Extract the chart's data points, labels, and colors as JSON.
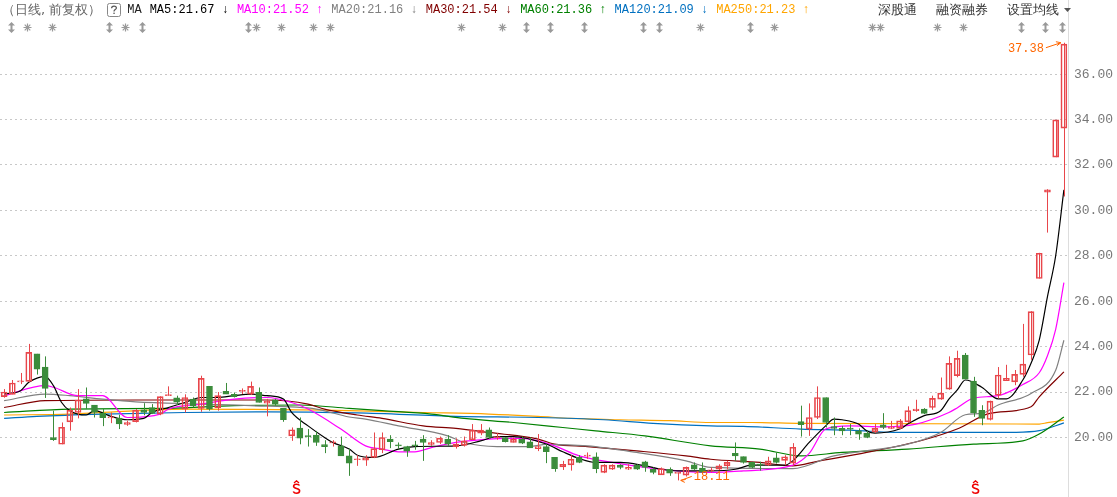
{
  "chart_data": {
    "type": "candlestick",
    "subtitle": "（日线, 前复权）",
    "legend_title": "MA",
    "legend": "top left",
    "grid": "y",
    "categories": [
      null,
      null,
      null,
      null,
      null,
      null,
      null,
      null,
      null,
      null,
      null,
      null,
      null,
      null,
      null,
      null,
      null,
      null,
      null,
      null,
      null,
      null,
      null,
      null,
      null,
      null,
      null,
      null,
      null,
      null,
      null,
      null,
      null,
      null,
      null,
      null,
      null,
      null,
      null,
      null,
      null,
      null,
      null,
      null,
      null,
      null,
      null,
      null,
      null,
      null,
      null,
      null,
      null,
      null,
      null,
      null,
      null,
      null,
      null,
      null,
      null,
      null,
      null,
      null,
      null,
      null,
      null,
      null,
      null,
      null,
      null,
      null,
      null,
      null,
      null,
      null,
      null,
      null,
      null,
      null,
      null,
      null,
      null,
      null,
      null,
      null,
      null,
      null,
      null,
      null,
      null,
      null,
      null,
      null,
      null,
      null,
      null,
      null,
      null,
      null,
      null,
      null,
      null,
      null,
      null,
      null,
      null,
      null,
      null,
      null,
      null,
      null,
      null,
      null,
      null,
      null,
      null,
      null,
      null,
      null,
      null,
      null,
      null,
      null,
      null,
      null,
      null,
      null,
      null,
      null
    ],
    "ohlc": [
      [
        21.8,
        22.13,
        21.75,
        22.0
      ],
      [
        21.9,
        22.53,
        21.9,
        22.4
      ],
      [
        22.45,
        22.84,
        22.35,
        22.48
      ],
      [
        22.47,
        24.12,
        22.43,
        23.75
      ],
      [
        23.68,
        23.68,
        22.77,
        23.01
      ],
      [
        23.1,
        23.57,
        21.74,
        22.16
      ],
      [
        20.0,
        21.18,
        19.85,
        19.9
      ],
      [
        19.7,
        20.66,
        19.7,
        20.45
      ],
      [
        20.69,
        21.32,
        20.3,
        21.2
      ],
      [
        21.1,
        22.13,
        20.84,
        21.65
      ],
      [
        21.7,
        22.2,
        21.25,
        21.5
      ],
      [
        21.43,
        21.43,
        20.88,
        21.1
      ],
      [
        21.07,
        21.25,
        20.5,
        20.87
      ],
      [
        20.86,
        21.1,
        20.63,
        20.9
      ],
      [
        20.85,
        21.0,
        20.37,
        20.6
      ],
      [
        20.57,
        20.74,
        20.51,
        20.66
      ],
      [
        20.7,
        21.25,
        20.66,
        21.2
      ],
      [
        21.22,
        21.51,
        20.98,
        21.1
      ],
      [
        21.32,
        21.47,
        21.03,
        21.06
      ],
      [
        21.03,
        21.81,
        20.98,
        21.8
      ],
      [
        21.84,
        22.25,
        21.84,
        21.87
      ],
      [
        21.75,
        21.84,
        21.43,
        21.55
      ],
      [
        21.25,
        21.9,
        21.1,
        21.76
      ],
      [
        21.69,
        21.76,
        21.32,
        21.4
      ],
      [
        21.28,
        22.72,
        21.13,
        22.6
      ],
      [
        22.25,
        22.25,
        21.18,
        21.25
      ],
      [
        21.31,
        22.0,
        21.18,
        21.84
      ],
      [
        22.03,
        22.4,
        21.91,
        21.91
      ],
      [
        21.9,
        21.98,
        21.76,
        21.8
      ],
      [
        22.03,
        22.16,
        21.91,
        22.05
      ],
      [
        21.91,
        22.46,
        21.87,
        22.25
      ],
      [
        21.99,
        22.2,
        21.54,
        21.54
      ],
      [
        21.51,
        21.7,
        20.93,
        21.6
      ],
      [
        21.66,
        21.7,
        21.4,
        21.47
      ],
      [
        21.28,
        21.28,
        20.69,
        20.78
      ],
      [
        20.07,
        20.44,
        19.85,
        20.34
      ],
      [
        20.41,
        20.88,
        19.7,
        19.97
      ],
      [
        20.06,
        20.37,
        19.6,
        20.04
      ],
      [
        20.1,
        20.29,
        19.63,
        19.78
      ],
      [
        19.69,
        19.88,
        19.31,
        19.6
      ],
      [
        19.76,
        19.88,
        19.6,
        19.8
      ],
      [
        19.63,
        20.04,
        19.19,
        19.19
      ],
      [
        19.19,
        19.51,
        18.31,
        18.87
      ],
      [
        19.02,
        19.22,
        18.75,
        19.04
      ],
      [
        19.0,
        19.22,
        18.75,
        19.1
      ],
      [
        19.12,
        20.22,
        19.09,
        19.51
      ],
      [
        19.46,
        20.22,
        19.31,
        20.0
      ],
      [
        19.93,
        20.1,
        19.53,
        19.81
      ],
      [
        19.65,
        19.78,
        19.49,
        19.63
      ],
      [
        19.6,
        19.63,
        19.15,
        19.4
      ],
      [
        19.65,
        19.85,
        19.46,
        19.63
      ],
      [
        19.93,
        20.1,
        18.97,
        19.78
      ],
      [
        19.69,
        19.88,
        19.63,
        19.78
      ],
      [
        19.78,
        20.04,
        19.71,
        19.97
      ],
      [
        19.93,
        20.1,
        19.63,
        19.71
      ],
      [
        19.6,
        19.96,
        19.51,
        19.71
      ],
      [
        19.65,
        20.04,
        19.6,
        19.85
      ],
      [
        19.9,
        20.59,
        19.9,
        20.32
      ],
      [
        20.19,
        20.59,
        20.1,
        20.32
      ],
      [
        20.34,
        20.44,
        19.93,
        20.0
      ],
      [
        19.99,
        20.19,
        19.9,
        20.0
      ],
      [
        20.0,
        20.0,
        19.78,
        19.81
      ],
      [
        19.78,
        20.0,
        19.78,
        19.93
      ],
      [
        19.93,
        20.04,
        19.71,
        19.75
      ],
      [
        19.81,
        20.0,
        19.54,
        19.54
      ],
      [
        19.51,
        20.15,
        19.4,
        19.6
      ],
      [
        19.6,
        19.71,
        18.87,
        19.37
      ],
      [
        19.12,
        19.12,
        18.49,
        18.63
      ],
      [
        18.7,
        18.97,
        18.57,
        18.82
      ],
      [
        18.79,
        19.22,
        18.54,
        19.04
      ],
      [
        19.12,
        19.22,
        18.87,
        18.9
      ],
      [
        19.18,
        19.34,
        19.06,
        19.2
      ],
      [
        19.15,
        19.34,
        18.43,
        18.63
      ],
      [
        18.46,
        18.82,
        18.43,
        18.78
      ],
      [
        18.6,
        18.82,
        18.57,
        18.78
      ],
      [
        18.78,
        18.82,
        18.6,
        18.68
      ],
      [
        18.6,
        18.82,
        18.57,
        18.68
      ],
      [
        18.78,
        18.82,
        18.57,
        18.6
      ],
      [
        18.93,
        18.97,
        18.49,
        18.68
      ],
      [
        18.6,
        18.68,
        18.38,
        18.46
      ],
      [
        18.35,
        18.68,
        18.35,
        18.63
      ],
      [
        18.6,
        18.68,
        18.31,
        18.43
      ],
      [
        18.42,
        18.46,
        18.11,
        18.43
      ],
      [
        18.34,
        18.72,
        18.28,
        18.68
      ],
      [
        18.8,
        18.9,
        18.57,
        18.6
      ],
      [
        18.65,
        18.9,
        18.43,
        18.46
      ],
      [
        18.53,
        18.68,
        18.46,
        18.55
      ],
      [
        18.6,
        18.82,
        18.57,
        18.75
      ],
      [
        18.75,
        18.97,
        18.6,
        18.9
      ],
      [
        19.3,
        19.78,
        18.97,
        19.19
      ],
      [
        19.16,
        19.16,
        18.85,
        18.9
      ],
      [
        18.9,
        18.93,
        18.65,
        18.68
      ],
      [
        18.8,
        18.93,
        18.54,
        18.78
      ],
      [
        18.78,
        19.15,
        18.75,
        18.97
      ],
      [
        19.1,
        19.34,
        18.85,
        18.9
      ],
      [
        18.99,
        19.22,
        18.78,
        19.15
      ],
      [
        18.87,
        19.75,
        18.78,
        19.57
      ],
      [
        20.7,
        21.4,
        20.04,
        20.56
      ],
      [
        20.37,
        21.5,
        20.07,
        20.88
      ],
      [
        20.88,
        22.25,
        20.81,
        21.76
      ],
      [
        21.76,
        21.76,
        20.44,
        20.66
      ],
      [
        20.48,
        20.88,
        20.1,
        20.4
      ],
      [
        20.4,
        20.51,
        20.1,
        20.29
      ],
      [
        20.38,
        20.59,
        20.1,
        20.37
      ],
      [
        20.29,
        20.4,
        19.9,
        20.15
      ],
      [
        20.19,
        20.29,
        19.97,
        20.0
      ],
      [
        20.25,
        20.59,
        20.19,
        20.4
      ],
      [
        20.56,
        21.07,
        20.37,
        20.44
      ],
      [
        20.4,
        20.73,
        20.37,
        20.47
      ],
      [
        20.4,
        20.81,
        20.37,
        20.73
      ],
      [
        20.69,
        21.37,
        20.63,
        21.18
      ],
      [
        21.18,
        21.66,
        21.13,
        21.25
      ],
      [
        21.25,
        21.29,
        21.03,
        21.06
      ],
      [
        21.32,
        21.84,
        21.22,
        21.72
      ],
      [
        21.69,
        22.64,
        21.66,
        21.95
      ],
      [
        22.13,
        23.57,
        22.1,
        23.26
      ],
      [
        22.72,
        23.82,
        22.65,
        23.48
      ],
      [
        23.63,
        23.72,
        22.57,
        22.57
      ],
      [
        22.48,
        22.67,
        20.91,
        21.08
      ],
      [
        21.2,
        21.42,
        20.54,
        20.84
      ],
      [
        20.79,
        21.62,
        20.75,
        21.6
      ],
      [
        21.86,
        23.1,
        21.72,
        22.75
      ],
      [
        22.5,
        23.2,
        22.49,
        22.6
      ],
      [
        22.45,
        22.97,
        22.3,
        22.78
      ],
      [
        22.78,
        25.0,
        22.67,
        23.23
      ],
      [
        23.63,
        25.56,
        23.42,
        25.54
      ],
      [
        27.0,
        28.13,
        27.0,
        28.11
      ],
      [
        30.8,
        30.93,
        29.02,
        30.9
      ],
      [
        32.34,
        33.98,
        32.34,
        33.98
      ],
      [
        33.62,
        37.38,
        30.61,
        37.32
      ]
    ],
    "series": [
      {
        "type": "line",
        "name": "MA5:21.67 ↓",
        "color": "#000000",
        "values": [
          21.91,
          null,
          22.06,
          22.43,
          null,
          22.68,
          22.28,
          21.54,
          21.18,
          null,
          20.99,
          21.18,
          null,
          20.93,
          null,
          20.78,
          null,
          20.84,
          21.1,
          null,
          21.32,
          null,
          21.54,
          null,
          21.76,
          null,
          21.76,
          null,
          21.84,
          null,
          21.91,
          null,
          21.84,
          null,
          21.69,
          21.1,
          null,
          20.51,
          null,
          20.0,
          19.78,
          null,
          19.49,
          19.22,
          null,
          19.12,
          null,
          null,
          19.49,
          null,
          19.6,
          null,
          null,
          null,
          null,
          19.63,
          null,
          null,
          19.85,
          null,
          20.04,
          null,
          20.04,
          null,
          null,
          null,
          19.71,
          null,
          19.37,
          null,
          19.07,
          null,
          18.9,
          null,
          null,
          18.9,
          null,
          null,
          18.75,
          null,
          18.6,
          null,
          18.53,
          null,
          null,
          null,
          18.53,
          null,
          null,
          18.6,
          null,
          18.78,
          null,
          null,
          null,
          18.78,
          18.97,
          null,
          19.78,
          null,
          20.51,
          20.81,
          20.78,
          null,
          20.59,
          20.29,
          20.19,
          null,
          null,
          20.37,
          20.59,
          null,
          20.96,
          null,
          21.18,
          21.69,
          22.08,
          22.53,
          null,
          22.21,
          null,
          21.7,
          21.7,
          null,
          22.53,
          23.27,
          24.29,
          26.2,
          28.0,
          30.9
        ]
      },
      {
        "type": "line",
        "name": "MA10:21.52 ↑",
        "color": "#ff00ff",
        "values": [
          21.84,
          null,
          null,
          null,
          null,
          22.28,
          22.21,
          null,
          null,
          21.84,
          null,
          null,
          21.84,
          null,
          null,
          20.88,
          null,
          null,
          null,
          21.03,
          21.25,
          null,
          null,
          null,
          21.47,
          null,
          null,
          null,
          21.69,
          null,
          null,
          null,
          21.76,
          null,
          null,
          21.54,
          null,
          21.25,
          null,
          null,
          null,
          20.37,
          null,
          null,
          19.63,
          null,
          19.49,
          null,
          19.37,
          null,
          19.37,
          null,
          19.55,
          null,
          null,
          19.78,
          null,
          null,
          null,
          19.93,
          null,
          null,
          null,
          19.96,
          null,
          19.85,
          null,
          19.63,
          null,
          null,
          19.19,
          null,
          null,
          null,
          18.9,
          null,
          null,
          null,
          18.68,
          null,
          null,
          null,
          18.53,
          null,
          null,
          null,
          18.46,
          null,
          null,
          null,
          18.53,
          null,
          null,
          null,
          null,
          null,
          18.78,
          null,
          19.3,
          null,
          20.37,
          null,
          null,
          20.51,
          null,
          null,
          null,
          20.47,
          null,
          null,
          null,
          20.59,
          null,
          null,
          null,
          21.1,
          21.3,
          null,
          21.73,
          null,
          null,
          21.84,
          null,
          null,
          22.33,
          null,
          22.85,
          23.6,
          24.76,
          26.82
        ]
      },
      {
        "type": "line",
        "name": "MA20:21.16 ↓",
        "color": "#808080",
        "values": [
          21.62,
          null,
          null,
          null,
          null,
          21.91,
          null,
          null,
          21.84,
          null,
          null,
          null,
          21.69,
          null,
          null,
          null,
          21.57,
          null,
          null,
          null,
          null,
          null,
          null,
          null,
          21.47,
          null,
          null,
          null,
          null,
          null,
          21.4,
          null,
          null,
          null,
          null,
          null,
          null,
          null,
          21.25,
          null,
          null,
          null,
          20.9,
          null,
          20.81,
          null,
          null,
          null,
          20.51,
          null,
          null,
          null,
          null,
          null,
          20.07,
          null,
          19.78,
          null,
          null,
          null,
          19.6,
          null,
          null,
          null,
          19.6,
          null,
          19.7,
          null,
          null,
          null,
          null,
          19.63,
          null,
          null,
          null,
          null,
          null,
          19.34,
          null,
          null,
          null,
          null,
          null,
          18.97,
          null,
          null,
          18.68,
          null,
          null,
          null,
          null,
          null,
          null,
          null,
          null,
          null,
          18.63,
          null,
          null,
          null,
          null,
          19.19,
          null,
          null,
          null,
          null,
          null,
          null,
          null,
          null,
          19.71,
          null,
          null,
          null,
          20.22,
          null,
          null,
          21.0,
          null,
          21.06,
          null,
          21.43,
          null,
          null,
          null,
          21.94,
          null,
          null,
          22.96,
          24.28
        ]
      },
      {
        "type": "line",
        "name": "MA30:21.54 ↓",
        "color": "#800000",
        "values": [
          21.32,
          null,
          null,
          null,
          null,
          21.62,
          null,
          null,
          null,
          null,
          null,
          null,
          null,
          null,
          null,
          null,
          21.65,
          null,
          null,
          null,
          null,
          null,
          null,
          null,
          null,
          null,
          null,
          null,
          null,
          null,
          null,
          null,
          21.65,
          null,
          null,
          null,
          null,
          21.47,
          null,
          21.25,
          null,
          null,
          null,
          20.99,
          null,
          null,
          20.84,
          null,
          null,
          null,
          null,
          20.51,
          null,
          null,
          null,
          20.4,
          null,
          null,
          null,
          20.22,
          null,
          null,
          null,
          null,
          null,
          19.93,
          null,
          19.71,
          null,
          null,
          null,
          19.6,
          null,
          null,
          null,
          null,
          null,
          19.41,
          null,
          null,
          null,
          null,
          null,
          19.19,
          null,
          null,
          19.04,
          null,
          null,
          null,
          null,
          null,
          18.9,
          null,
          null,
          null,
          18.75,
          null,
          null,
          18.95,
          null,
          null,
          null,
          null,
          null,
          19.34,
          null,
          null,
          null,
          null,
          null,
          null,
          19.9,
          null,
          null,
          null,
          20.37,
          null,
          null,
          null,
          21.06,
          null,
          null,
          null,
          null,
          21.35,
          21.79,
          null,
          null,
          22.89
        ]
      },
      {
        "type": "line",
        "name": "MA60:21.36 ↑",
        "color": "#008000",
        "values": [
          21.1,
          null,
          null,
          null,
          null,
          null,
          null,
          null,
          21.25,
          null,
          null,
          null,
          null,
          null,
          null,
          null,
          null,
          null,
          null,
          null,
          21.28,
          null,
          null,
          null,
          null,
          null,
          null,
          null,
          21.4,
          null,
          null,
          null,
          null,
          null,
          null,
          null,
          21.43,
          null,
          null,
          null,
          null,
          null,
          21.28,
          null,
          null,
          null,
          21.18,
          null,
          null,
          null,
          null,
          null,
          21.03,
          null,
          null,
          null,
          20.84,
          null,
          null,
          null,
          null,
          null,
          20.66,
          null,
          null,
          null,
          null,
          null,
          20.44,
          null,
          null,
          null,
          20.29,
          null,
          null,
          null,
          null,
          null,
          20.07,
          null,
          null,
          null,
          null,
          null,
          null,
          null,
          19.63,
          null,
          null,
          null,
          null,
          null,
          19.49,
          null,
          null,
          null,
          null,
          19.19,
          null,
          null,
          null,
          null,
          19.34,
          null,
          null,
          null,
          null,
          null,
          null,
          null,
          19.49,
          null,
          null,
          null,
          null,
          null,
          null,
          null,
          19.71,
          null,
          null,
          null,
          null,
          null,
          19.85,
          null,
          20.15,
          null,
          null,
          20.9
        ]
      },
      {
        "type": "line",
        "name": "MA120:21.09 ↓",
        "color": "#0070c0",
        "values": [
          20.84,
          null,
          null,
          null,
          20.93,
          null,
          null,
          null,
          null,
          null,
          null,
          null,
          21.03,
          null,
          null,
          null,
          null,
          null,
          null,
          null,
          null,
          null,
          21.1,
          null,
          null,
          null,
          null,
          null,
          null,
          null,
          null,
          null,
          21.13,
          null,
          null,
          null,
          null,
          null,
          null,
          null,
          null,
          null,
          null,
          21.08,
          null,
          null,
          null,
          null,
          null,
          null,
          null,
          null,
          null,
          null,
          null,
          20.93,
          null,
          null,
          null,
          null,
          null,
          null,
          null,
          null,
          null,
          20.88,
          null,
          null,
          null,
          null,
          null,
          null,
          null,
          20.78,
          null,
          null,
          null,
          null,
          null,
          20.62,
          null,
          null,
          null,
          null,
          null,
          null,
          20.51,
          null,
          null,
          null,
          20.49,
          null,
          null,
          null,
          null,
          null,
          null,
          20.37,
          null,
          null,
          null,
          null,
          null,
          20.32,
          null,
          null,
          null,
          null,
          null,
          20.22,
          null,
          null,
          null,
          null,
          null,
          null,
          null,
          null,
          null,
          null,
          null,
          null,
          20.22,
          null,
          null,
          null,
          20.3,
          null,
          null,
          20.64
        ]
      },
      {
        "type": "line",
        "name": "MA250:21.23 ↑",
        "color": "#ffa500",
        "values": [
          20.99,
          null,
          null,
          null,
          null,
          null,
          null,
          null,
          21.03,
          null,
          null,
          null,
          null,
          null,
          null,
          null,
          null,
          null,
          null,
          null,
          null,
          null,
          21.25,
          null,
          null,
          null,
          null,
          null,
          null,
          null,
          null,
          null,
          null,
          null,
          null,
          null,
          null,
          null,
          null,
          null,
          null,
          null,
          21.18,
          null,
          null,
          null,
          null,
          null,
          null,
          null,
          null,
          21.1,
          null,
          null,
          null,
          null,
          null,
          null,
          null,
          21.03,
          null,
          null,
          null,
          null,
          null,
          20.93,
          null,
          null,
          null,
          20.84,
          null,
          null,
          null,
          null,
          null,
          20.78,
          null,
          null,
          null,
          null,
          null,
          20.74,
          null,
          null,
          null,
          null,
          20.66,
          null,
          null,
          null,
          null,
          20.66,
          null,
          null,
          null,
          null,
          null,
          20.62,
          null,
          null,
          null,
          null,
          null,
          null,
          null,
          null,
          null,
          null,
          null,
          null,
          null,
          null,
          null,
          null,
          null,
          null,
          null,
          null,
          null,
          null,
          null,
          null,
          null,
          null,
          null,
          null,
          20.59,
          20.65,
          null,
          20.76
        ]
      }
    ],
    "ylim": [
      17.37,
      39.27
    ],
    "yticks": [
      {
        "value": 20,
        "label": "20.00"
      },
      {
        "value": 22,
        "label": "22.00"
      },
      {
        "value": 24,
        "label": "24.00"
      },
      {
        "value": 26,
        "label": "26.00"
      },
      {
        "value": 28,
        "label": "28.00"
      },
      {
        "value": 30,
        "label": "30.00"
      },
      {
        "value": 32,
        "label": "32.00"
      },
      {
        "value": 34,
        "label": "34.00"
      },
      {
        "value": 36,
        "label": "36.00"
      }
    ],
    "annotations": [
      "37.38",
      "18.11",
      "深股通",
      "融资融券",
      "设置均线"
    ]
  }
}
